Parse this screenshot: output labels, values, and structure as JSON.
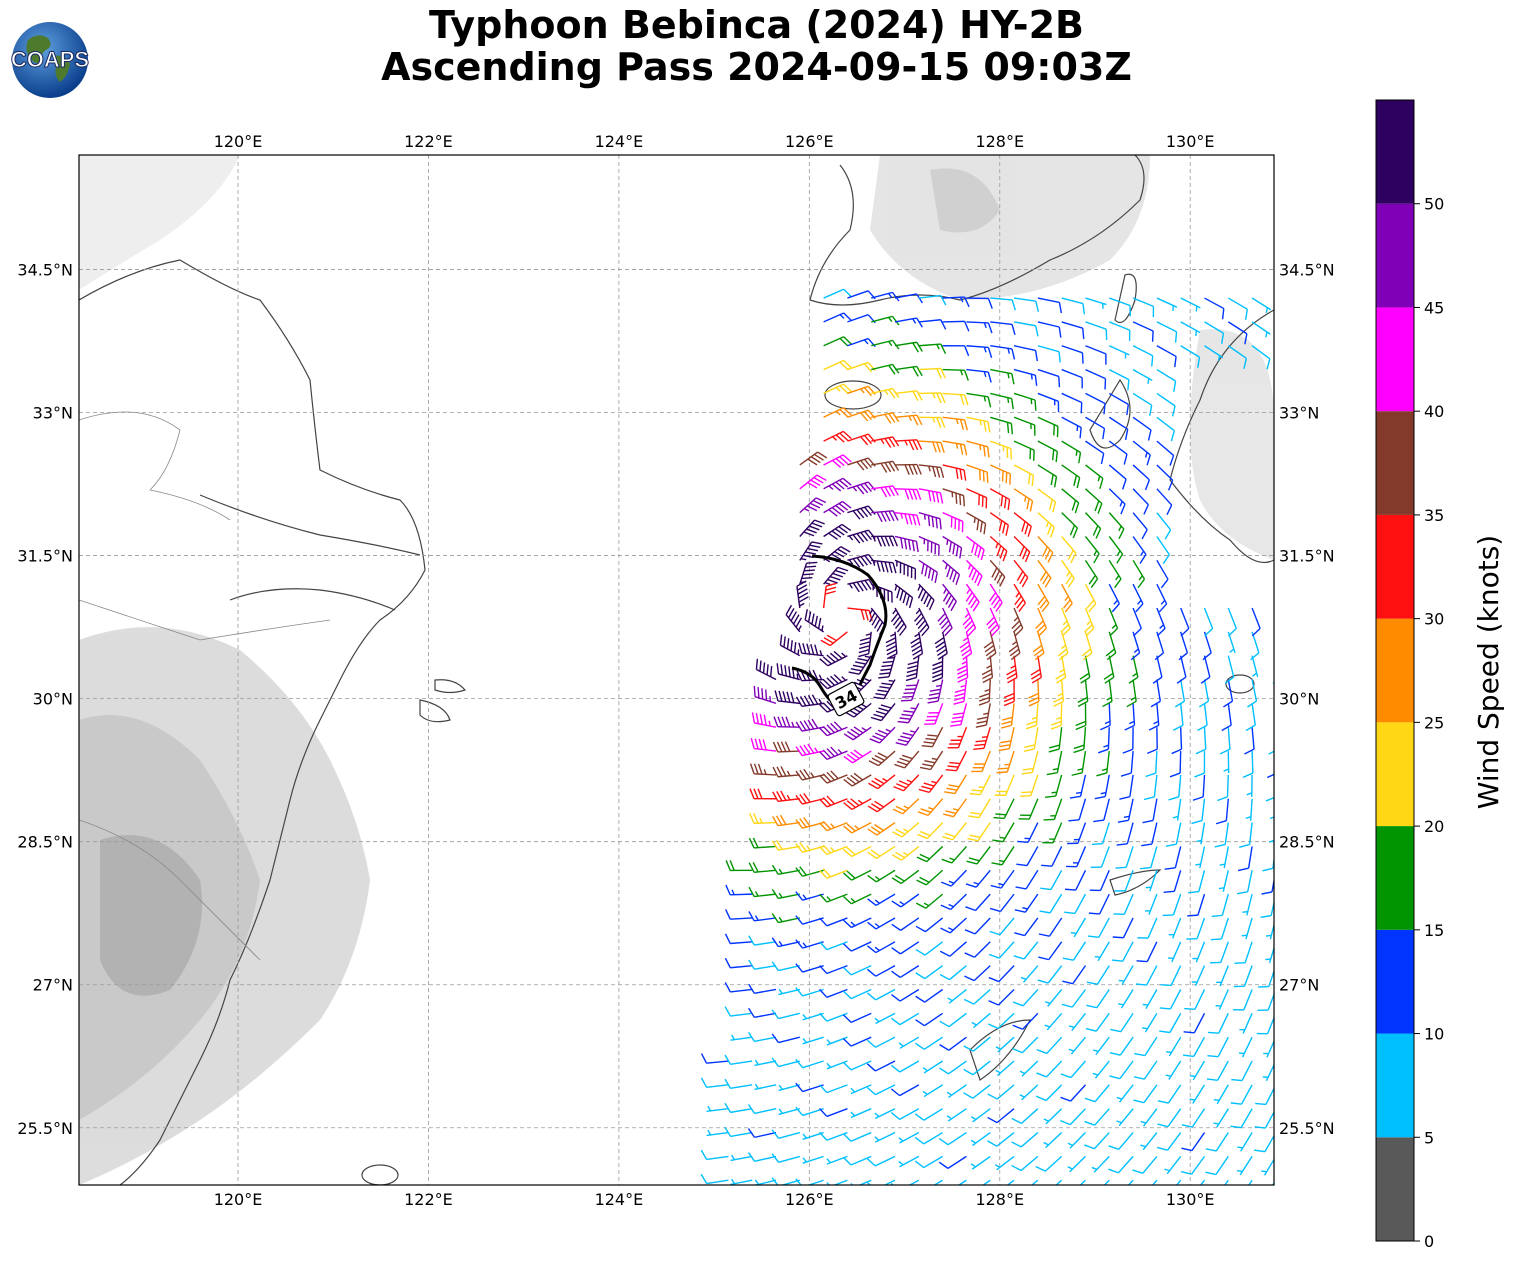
{
  "title": {
    "line1": "Typhoon Bebinca (2024) HY-2B",
    "line2": "Ascending Pass 2024-09-15 09:03Z"
  },
  "logo": {
    "text": "COAPS"
  },
  "map": {
    "lon_range": [
      118.33,
      130.88
    ],
    "lat_range": [
      24.9,
      35.7
    ],
    "lon_ticks": [
      "120°E",
      "122°E",
      "124°E",
      "126°E",
      "128°E",
      "130°E"
    ],
    "lat_ticks": [
      "34.5°N",
      "33°N",
      "31.5°N",
      "30°N",
      "28.5°N",
      "27°N",
      "25.5°N"
    ],
    "gridlines": true,
    "contour_label": "34"
  },
  "colorbar": {
    "label": "Wind Speed (knots)",
    "ticks": [
      "0",
      "5",
      "10",
      "15",
      "20",
      "25",
      "30",
      "35",
      "40",
      "45",
      "50"
    ],
    "range": [
      0,
      55
    ],
    "bins": [
      {
        "min": 0,
        "max": 5,
        "color": "#595959"
      },
      {
        "min": 5,
        "max": 10,
        "color": "#00bfff"
      },
      {
        "min": 10,
        "max": 15,
        "color": "#0034ff"
      },
      {
        "min": 15,
        "max": 20,
        "color": "#009400"
      },
      {
        "min": 20,
        "max": 25,
        "color": "#ffd714"
      },
      {
        "min": 25,
        "max": 30,
        "color": "#ff8c00"
      },
      {
        "min": 30,
        "max": 35,
        "color": "#ff1010"
      },
      {
        "min": 35,
        "max": 40,
        "color": "#843a2a"
      },
      {
        "min": 40,
        "max": 45,
        "color": "#ff00ff"
      },
      {
        "min": 45,
        "max": 50,
        "color": "#8000b8"
      },
      {
        "min": 50,
        "max": 55,
        "color": "#2e0060"
      }
    ]
  },
  "storm_center": {
    "lon": 126.35,
    "lat": 30.85
  }
}
